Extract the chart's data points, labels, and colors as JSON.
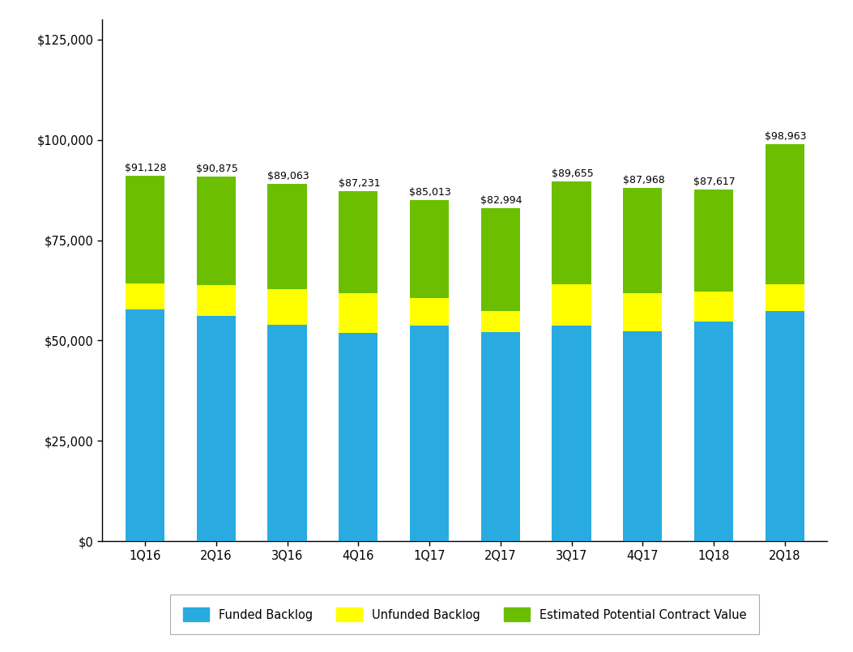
{
  "categories": [
    "1Q16",
    "2Q16",
    "3Q16",
    "4Q16",
    "1Q17",
    "2Q17",
    "3Q17",
    "4Q17",
    "1Q18",
    "2Q18"
  ],
  "totals": [
    91128,
    90875,
    89063,
    87231,
    85013,
    82994,
    89655,
    87968,
    87617,
    98963
  ],
  "funded_backlog": [
    57800,
    56200,
    53900,
    52000,
    53700,
    52200,
    53700,
    52300,
    54800,
    57300
  ],
  "unfunded_backlog": [
    6500,
    7700,
    9000,
    9700,
    6900,
    5100,
    10400,
    9400,
    7500,
    6800
  ],
  "colors": {
    "funded": "#29ABE2",
    "unfunded": "#FFFF00",
    "estimated": "#6BBF00"
  },
  "ylim_max": 130000,
  "yticks": [
    0,
    25000,
    50000,
    75000,
    100000,
    125000
  ],
  "legend_labels": [
    "Funded Backlog",
    "Unfunded Backlog",
    "Estimated Potential Contract Value"
  ],
  "annotation_fontsize": 9.0,
  "tick_fontsize": 10.5,
  "legend_fontsize": 10.5,
  "background_color": "#FFFFFF",
  "bar_width": 0.55
}
